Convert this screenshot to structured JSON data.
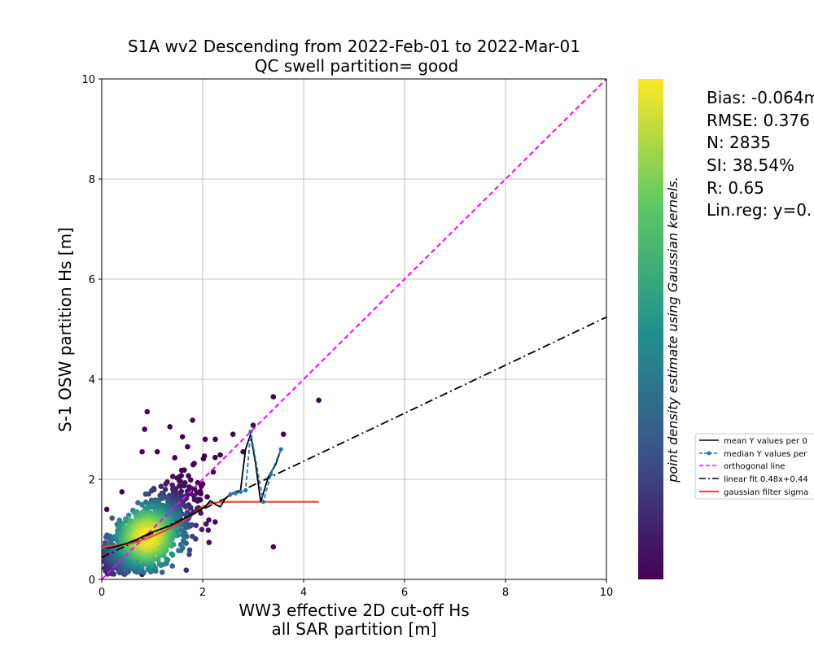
{
  "chart_data": {
    "type": "scatter",
    "title": "S1A wv2 Descending from 2022-Feb-01 to 2022-Mar-01",
    "subtitle": "QC swell partition= good",
    "xlabel_line1": "WW3 effective 2D cut-off Hs",
    "xlabel_line2": "all SAR partition [m]",
    "ylabel": "S-1 OSW partition Hs [m]",
    "xlim": [
      0,
      10
    ],
    "ylim": [
      0,
      10
    ],
    "xticks": [
      "0",
      "2",
      "4",
      "6",
      "8",
      "10"
    ],
    "yticks": [
      "0",
      "2",
      "4",
      "6",
      "8",
      "10"
    ],
    "grid": true,
    "colorbar_label": "point density estimate using Gaussian kernels.",
    "colormap": [
      "#440154",
      "#3b528b",
      "#21918c",
      "#5ec962",
      "#fde725"
    ],
    "stats": [
      "Bias: -0.064m",
      "RMSE: 0.376",
      "N: 2835",
      "SI: 38.54%",
      "R: 0.65",
      "Lin.reg: y=0."
    ],
    "legend_position": "right",
    "legend": [
      {
        "label": "mean Y values per 0",
        "style": "solid",
        "color": "#000000"
      },
      {
        "label": "median Y values per",
        "style": "dashed-marker",
        "color": "#1f77b4"
      },
      {
        "label": "orthogonal line",
        "style": "dashed",
        "color": "#ff00ff"
      },
      {
        "label": "linear fit 0.48x+0.44",
        "style": "dashdot",
        "color": "#000000"
      },
      {
        "label": "gaussian filter sigma",
        "style": "solid",
        "color": "#e8443a"
      }
    ],
    "series": [
      {
        "kind": "orthogonal",
        "x": [
          0,
          10
        ],
        "y": [
          0,
          10
        ]
      },
      {
        "kind": "linear_fit",
        "slope": 0.48,
        "intercept": 0.44,
        "x": [
          0,
          10
        ],
        "y": [
          0.44,
          5.24
        ]
      },
      {
        "kind": "mean",
        "x": [
          0.1,
          0.3,
          0.5,
          0.7,
          0.9,
          1.1,
          1.3,
          1.5,
          1.7,
          1.9,
          2.05,
          2.15,
          2.25,
          2.35,
          2.45,
          2.55,
          2.65,
          2.75,
          2.85,
          2.95,
          3.05,
          3.15,
          3.3,
          3.45,
          3.55
        ],
        "y": [
          0.62,
          0.66,
          0.72,
          0.8,
          0.9,
          0.98,
          1.05,
          1.14,
          1.25,
          1.36,
          1.45,
          1.57,
          1.5,
          1.45,
          1.62,
          1.7,
          1.75,
          1.78,
          2.6,
          2.9,
          2.3,
          1.55,
          2.05,
          2.3,
          2.6
        ]
      },
      {
        "kind": "median",
        "x": [
          2.55,
          2.65,
          2.75,
          2.85,
          2.95,
          3.2,
          3.35,
          3.55
        ],
        "y": [
          1.7,
          1.72,
          1.75,
          1.78,
          2.95,
          1.55,
          2.1,
          2.6
        ]
      },
      {
        "kind": "gaussian",
        "x": [
          0,
          0.3,
          0.6,
          0.9,
          1.2,
          1.5,
          1.8,
          2.0,
          2.15,
          2.3,
          2.5,
          3.0,
          3.5,
          4.3
        ],
        "y": [
          0.65,
          0.68,
          0.72,
          0.82,
          0.95,
          1.1,
          1.3,
          1.45,
          1.52,
          1.54,
          1.55,
          1.55,
          1.55,
          1.55
        ]
      }
    ],
    "scatter_points": {
      "n_displayed": 1500,
      "center": [
        0.9,
        0.85
      ],
      "outliers": [
        [
          0.9,
          3.35
        ],
        [
          0.85,
          3.0
        ],
        [
          1.35,
          3.05
        ],
        [
          1.8,
          3.18
        ],
        [
          2.05,
          2.8
        ],
        [
          2.25,
          2.8
        ],
        [
          2.6,
          2.9
        ],
        [
          3.0,
          3.08
        ],
        [
          3.4,
          3.65
        ],
        [
          4.3,
          3.58
        ],
        [
          3.4,
          0.65
        ],
        [
          0.8,
          2.55
        ],
        [
          1.1,
          2.55
        ],
        [
          3.6,
          2.9
        ],
        [
          0.4,
          1.75
        ],
        [
          0.1,
          1.4
        ],
        [
          0.8,
          0.1
        ],
        [
          1.6,
          2.85
        ],
        [
          2.8,
          2.55
        ],
        [
          1.7,
          2.65
        ]
      ]
    }
  }
}
